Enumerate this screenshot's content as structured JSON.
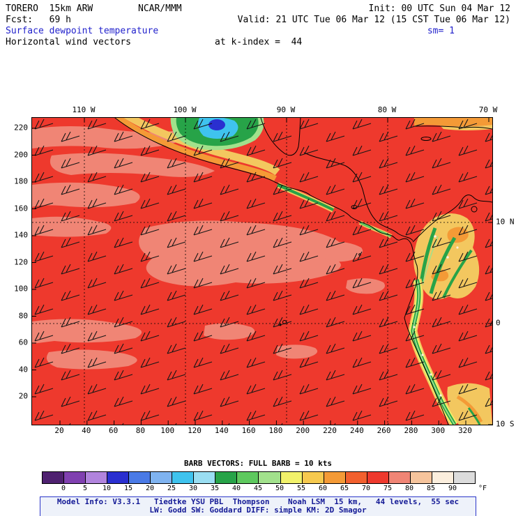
{
  "header": {
    "model": "TORERO  15km ARW",
    "center": "NCAR/MMM",
    "init": "Init: 00 UTC Sun 04 Mar 12",
    "fcst": "Fcst:   69 h",
    "valid": "Valid: 21 UTC Tue 06 Mar 12 (15 CST Tue 06 Mar 12)",
    "field_title": "Surface dewpoint temperature",
    "smoothing": "sm= 1",
    "field_subtitle": "Horizontal wind vectors",
    "level": "at k-index =  44",
    "accent_color": "#2222cc"
  },
  "map": {
    "axes": {
      "top": [
        "110 W",
        "100 W",
        "90 W",
        "80 W",
        "70 W"
      ],
      "left": [
        "220",
        "200",
        "180",
        "160",
        "140",
        "120",
        "100",
        "80",
        "60",
        "40",
        "20"
      ],
      "bottom": [
        "20",
        "40",
        "60",
        "80",
        "100",
        "120",
        "140",
        "160",
        "180",
        "200",
        "220",
        "240",
        "260",
        "280",
        "300",
        "320"
      ],
      "right": [
        "10 N",
        "0",
        "10 S"
      ]
    }
  },
  "legend": {
    "barb_text": "BARB VECTORS: FULL BARB = 10 kts"
  },
  "colorbar": {
    "labels": [
      "0",
      "5",
      "10",
      "15",
      "20",
      "25",
      "30",
      "35",
      "40",
      "45",
      "50",
      "55",
      "60",
      "65",
      "70",
      "75",
      "80",
      "85",
      "90"
    ],
    "unit": "°F",
    "colors": [
      "#4f2170",
      "#8040b0",
      "#b184dd",
      "#2a2fd0",
      "#4a7ae6",
      "#7fb3f0",
      "#3fc3ee",
      "#9adef2",
      "#27a348",
      "#5ec95e",
      "#a2e18c",
      "#f2f26b",
      "#f6c94f",
      "#f49a36",
      "#f2602e",
      "#ee392d",
      "#f08575",
      "#f6c49c",
      "#fbeedd",
      "#dcdcdc"
    ]
  },
  "footer": {
    "line1": "Model Info: V3.3.1   Tiedtke YSU PBL  Thompson    Noah LSM  15 km,   44 levels,  55 sec",
    "line2": "LW: Godd SW: Goddard DIFF: simple KM: 2D Smagor"
  }
}
